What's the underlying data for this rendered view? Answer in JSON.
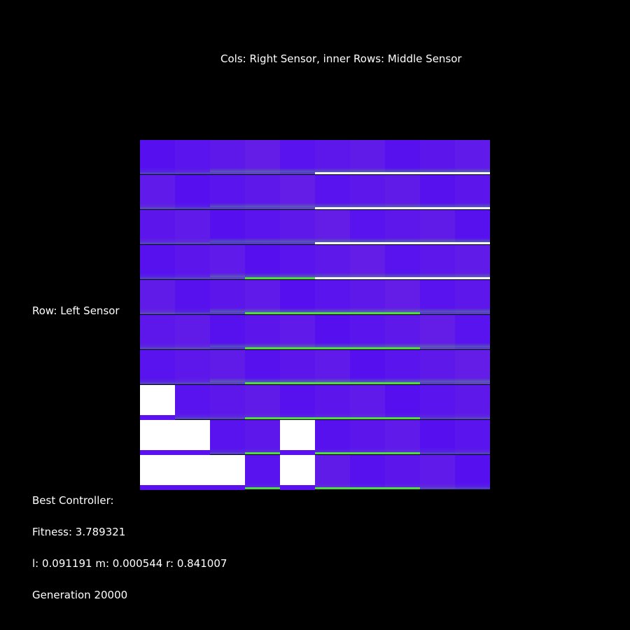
{
  "labels": {
    "cols": "Cols: Right Sensor, inner Rows: Middle Sensor",
    "row": "Row: Left Sensor",
    "best": "Best Controller:",
    "fitness": "Fitness: 3.789321",
    "params": "l: 0.091191 m: 0.000544 r: 0.841007",
    "generation": "Generation 20000"
  },
  "colors": {
    "background": "#000000",
    "text": "#ffffff",
    "low": "#5a10f0",
    "high": "#4fd94a",
    "white": "#ffffff"
  },
  "heatmap": {
    "rows": 10,
    "cols": 10,
    "white_cells": [
      [
        7,
        0
      ],
      [
        8,
        0
      ],
      [
        8,
        1
      ],
      [
        8,
        4
      ],
      [
        9,
        0
      ],
      [
        9,
        1
      ],
      [
        9,
        2
      ],
      [
        9,
        4
      ]
    ],
    "note_rows": "row index 0 top = high left sensor value"
  }
}
